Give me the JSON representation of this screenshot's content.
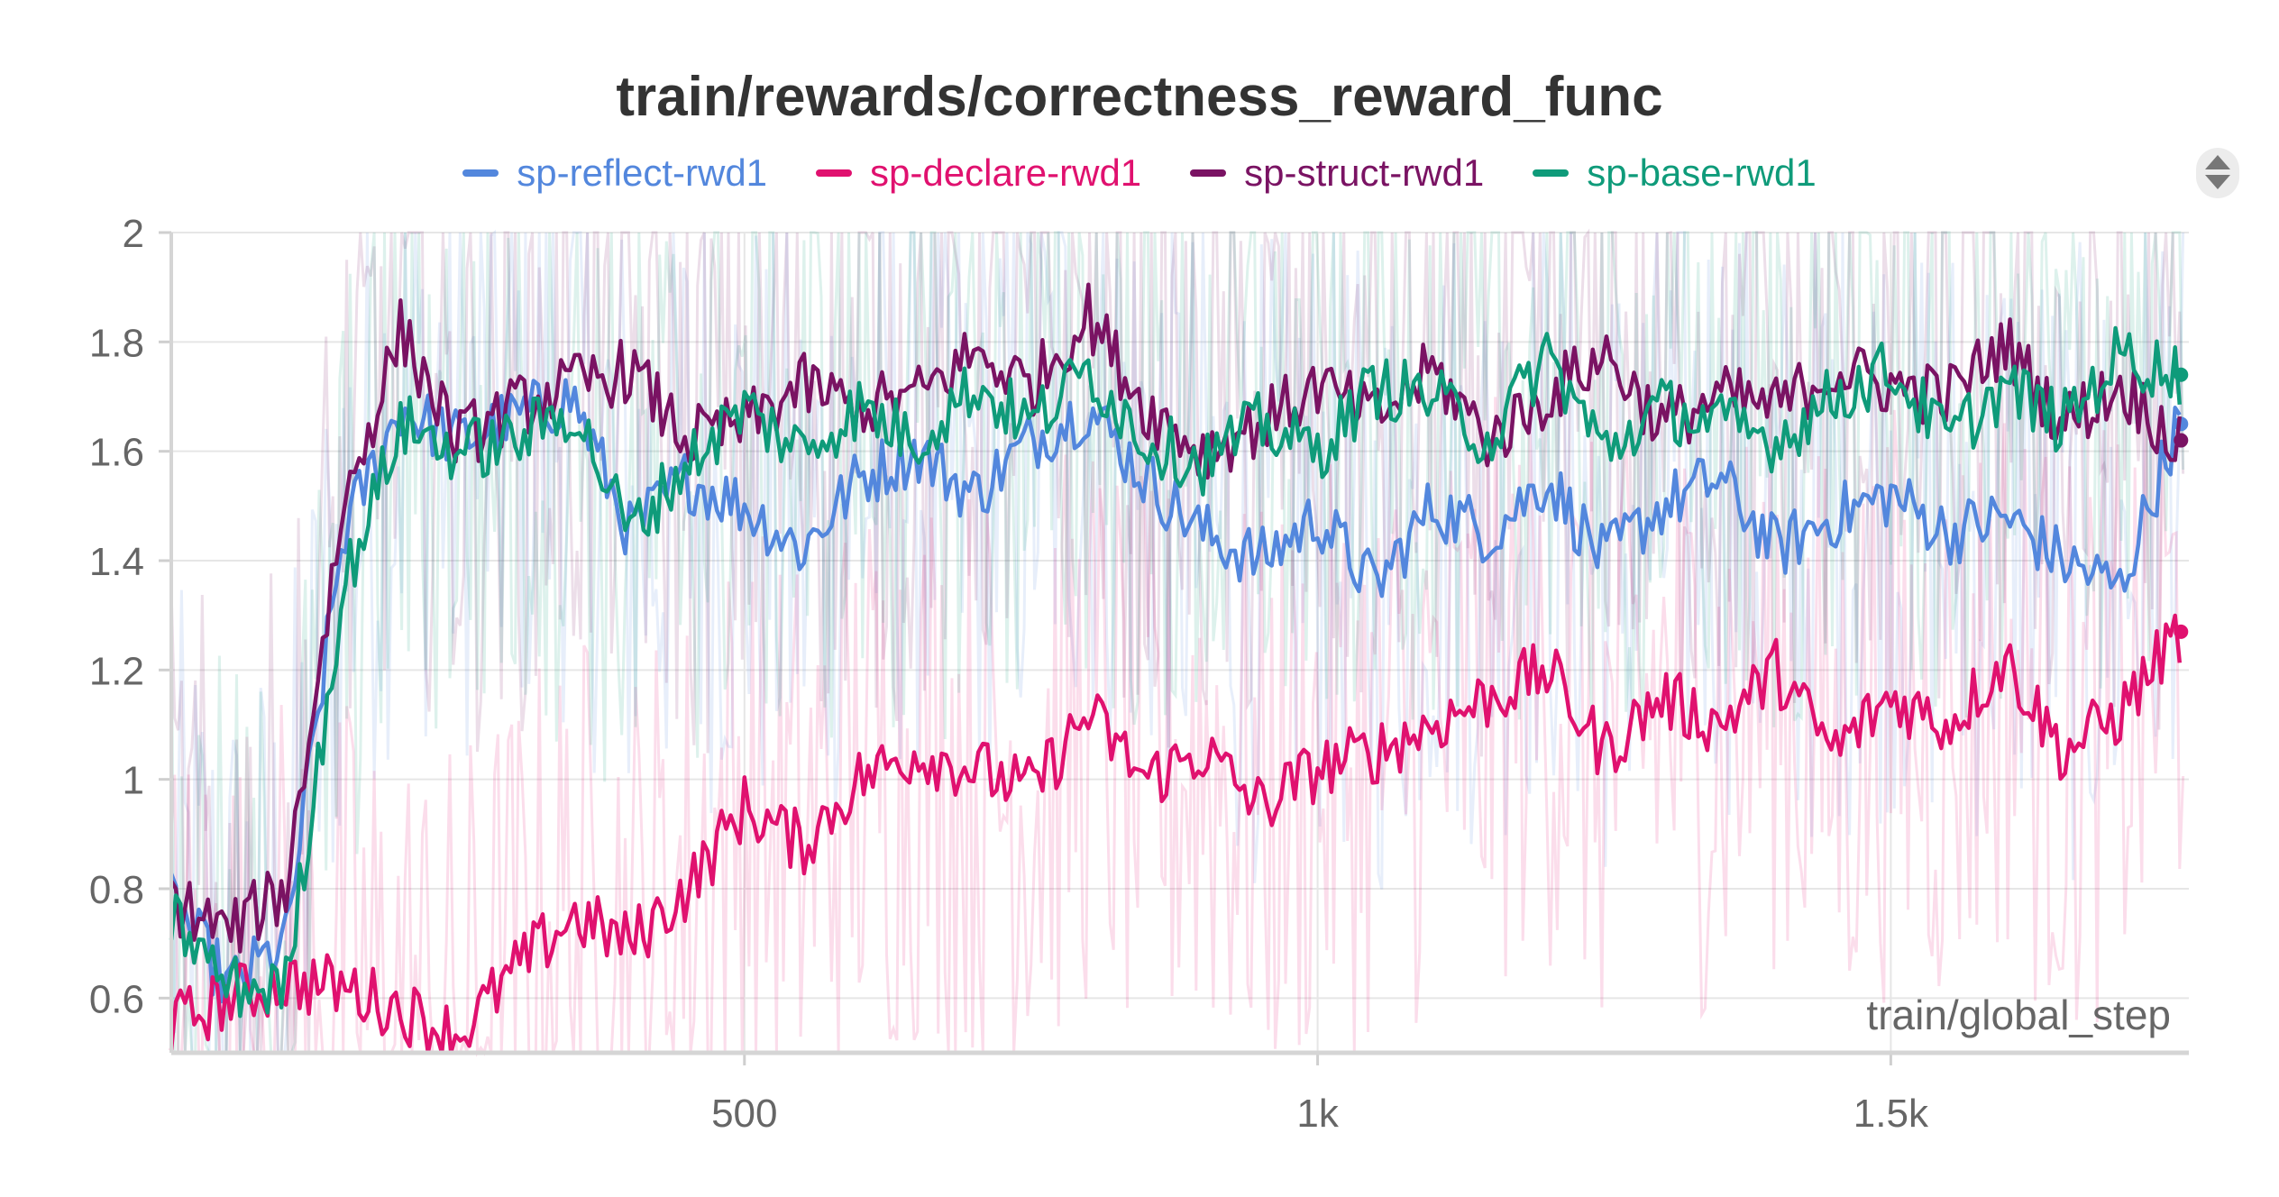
{
  "chart_data": {
    "type": "line",
    "title": "train/rewards/correctness_reward_func",
    "xlabel": "train/global_step",
    "ylabel": "",
    "xlim": [
      0,
      1760
    ],
    "ylim": [
      0.5,
      2.0
    ],
    "x_ticks": [
      500,
      1000,
      1500
    ],
    "x_tick_labels": [
      "500",
      "1k",
      "1.5k"
    ],
    "y_ticks": [
      0.6,
      0.8,
      1.0,
      1.2,
      1.4,
      1.6,
      1.8,
      2.0
    ],
    "y_tick_labels": [
      "0.6",
      "0.8",
      "1",
      "1.2",
      "1.4",
      "1.6",
      "1.8",
      "2"
    ],
    "grid": true,
    "legend_position": "top-center",
    "series": [
      {
        "name": "sp-reflect-rwd1",
        "color": "#5387dd",
        "x": [
          0,
          50,
          100,
          150,
          200,
          250,
          300,
          350,
          400,
          450,
          500,
          550,
          600,
          650,
          700,
          750,
          800,
          850,
          900,
          950,
          1000,
          1050,
          1100,
          1150,
          1200,
          1250,
          1300,
          1350,
          1400,
          1450,
          1500,
          1550,
          1600,
          1650,
          1700,
          1750
        ],
        "y": [
          0.78,
          0.62,
          0.7,
          1.45,
          1.68,
          1.62,
          1.66,
          1.7,
          1.45,
          1.55,
          1.5,
          1.42,
          1.55,
          1.6,
          1.52,
          1.62,
          1.68,
          1.55,
          1.45,
          1.4,
          1.48,
          1.35,
          1.5,
          1.45,
          1.55,
          1.4,
          1.5,
          1.55,
          1.42,
          1.48,
          1.52,
          1.45,
          1.48,
          1.4,
          1.35,
          1.65
        ]
      },
      {
        "name": "sp-declare-rwd1",
        "color": "#e0116f",
        "x": [
          0,
          50,
          100,
          150,
          200,
          250,
          300,
          350,
          400,
          450,
          500,
          550,
          600,
          650,
          700,
          750,
          800,
          850,
          900,
          950,
          1000,
          1050,
          1100,
          1150,
          1200,
          1250,
          1300,
          1350,
          1400,
          1450,
          1500,
          1550,
          1600,
          1650,
          1700,
          1750
        ],
        "y": [
          0.55,
          0.6,
          0.63,
          0.62,
          0.58,
          0.53,
          0.65,
          0.75,
          0.7,
          0.8,
          0.95,
          0.88,
          1.0,
          1.05,
          1.02,
          0.98,
          1.12,
          1.0,
          1.05,
          0.95,
          1.02,
          1.05,
          1.1,
          1.15,
          1.2,
          1.05,
          1.15,
          1.1,
          1.2,
          1.05,
          1.15,
          1.1,
          1.22,
          1.05,
          1.12,
          1.27
        ]
      },
      {
        "name": "sp-struct-rwd1",
        "color": "#7a1363",
        "x": [
          0,
          50,
          100,
          150,
          200,
          250,
          300,
          350,
          400,
          450,
          500,
          550,
          600,
          650,
          700,
          750,
          800,
          850,
          900,
          950,
          1000,
          1050,
          1100,
          1150,
          1200,
          1250,
          1300,
          1350,
          1400,
          1450,
          1500,
          1550,
          1600,
          1650,
          1700,
          1750
        ],
        "y": [
          0.78,
          0.72,
          0.8,
          1.5,
          1.82,
          1.62,
          1.68,
          1.72,
          1.75,
          1.62,
          1.65,
          1.72,
          1.68,
          1.7,
          1.78,
          1.72,
          1.85,
          1.68,
          1.6,
          1.65,
          1.72,
          1.66,
          1.75,
          1.62,
          1.7,
          1.78,
          1.65,
          1.7,
          1.68,
          1.75,
          1.72,
          1.7,
          1.8,
          1.65,
          1.72,
          1.62
        ]
      },
      {
        "name": "sp-base-rwd1",
        "color": "#0f9b7a",
        "x": [
          0,
          50,
          100,
          150,
          200,
          250,
          300,
          350,
          400,
          450,
          500,
          550,
          600,
          650,
          700,
          750,
          800,
          850,
          900,
          950,
          1000,
          1050,
          1100,
          1150,
          1200,
          1250,
          1300,
          1350,
          1400,
          1450,
          1500,
          1550,
          1600,
          1650,
          1700,
          1750
        ],
        "y": [
          0.75,
          0.62,
          0.62,
          1.35,
          1.65,
          1.6,
          1.62,
          1.68,
          1.45,
          1.58,
          1.68,
          1.6,
          1.68,
          1.62,
          1.72,
          1.65,
          1.75,
          1.62,
          1.58,
          1.65,
          1.6,
          1.72,
          1.7,
          1.62,
          1.78,
          1.6,
          1.68,
          1.65,
          1.62,
          1.7,
          1.75,
          1.62,
          1.72,
          1.65,
          1.78,
          1.74
        ]
      }
    ]
  }
}
